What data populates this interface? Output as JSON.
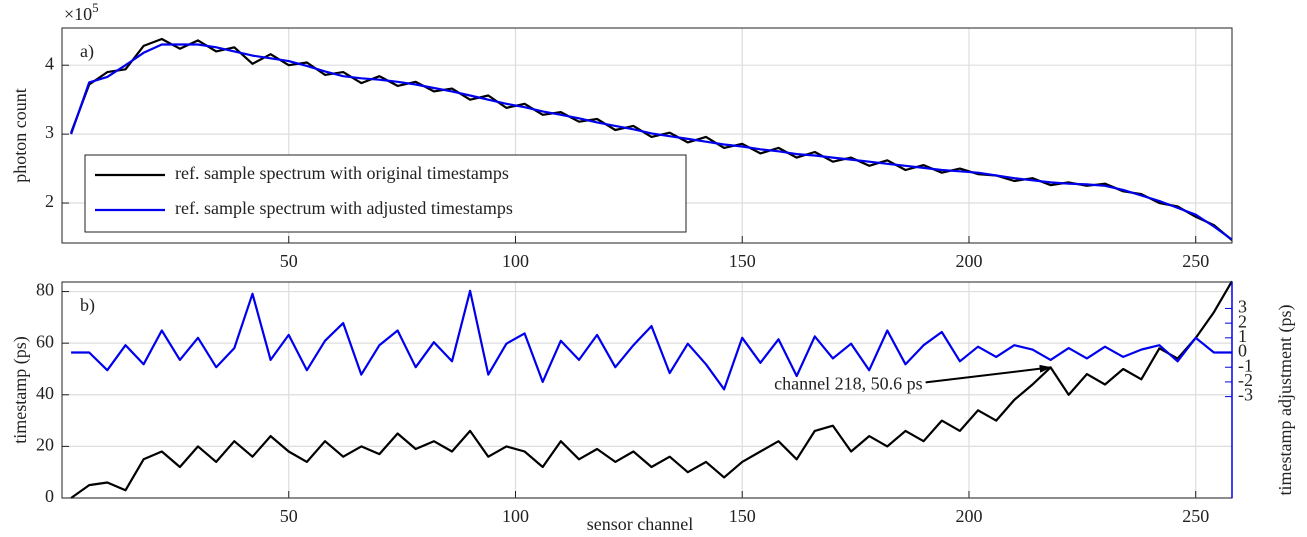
{
  "chart_data": [
    {
      "type": "line",
      "label": "a)",
      "ylabel": "photon count",
      "y_scale_base": "×10",
      "y_scale_exponent": "5",
      "legend": "lower left",
      "grid": true,
      "xlim": [
        0,
        258
      ],
      "xticks": [
        50,
        100,
        150,
        200,
        250
      ],
      "ylim": [
        1.42,
        4.54
      ],
      "yticks": [
        2,
        3,
        4
      ],
      "x": [
        2,
        6,
        10,
        14,
        18,
        22,
        26,
        30,
        34,
        38,
        42,
        46,
        50,
        54,
        58,
        62,
        66,
        70,
        74,
        78,
        82,
        86,
        90,
        94,
        98,
        102,
        106,
        110,
        114,
        118,
        122,
        126,
        130,
        134,
        138,
        142,
        146,
        150,
        154,
        158,
        162,
        166,
        170,
        174,
        178,
        182,
        186,
        190,
        194,
        198,
        202,
        206,
        210,
        214,
        218,
        222,
        226,
        230,
        234,
        238,
        242,
        246,
        250,
        254,
        258
      ],
      "series": [
        {
          "name": "ref. sample spectrum with original timestamps",
          "color": "#000000",
          "values": [
            3.02,
            3.72,
            3.9,
            3.94,
            4.28,
            4.38,
            4.24,
            4.36,
            4.2,
            4.26,
            4.02,
            4.16,
            4.0,
            4.04,
            3.86,
            3.9,
            3.74,
            3.84,
            3.7,
            3.76,
            3.62,
            3.66,
            3.5,
            3.56,
            3.38,
            3.44,
            3.28,
            3.32,
            3.18,
            3.22,
            3.06,
            3.12,
            2.96,
            3.02,
            2.88,
            2.96,
            2.8,
            2.86,
            2.72,
            2.8,
            2.66,
            2.74,
            2.6,
            2.66,
            2.54,
            2.62,
            2.48,
            2.55,
            2.44,
            2.5,
            2.42,
            2.4,
            2.32,
            2.36,
            2.26,
            2.3,
            2.25,
            2.28,
            2.17,
            2.13,
            2.0,
            1.95,
            1.8,
            1.68,
            1.46
          ]
        },
        {
          "name": "ref. sample spectrum with adjusted timestamps",
          "color": "#0000ee",
          "values": [
            3.0,
            3.75,
            3.83,
            4.0,
            4.18,
            4.3,
            4.3,
            4.3,
            4.26,
            4.2,
            4.14,
            4.1,
            4.06,
            3.99,
            3.91,
            3.84,
            3.81,
            3.79,
            3.76,
            3.72,
            3.67,
            3.62,
            3.56,
            3.5,
            3.44,
            3.39,
            3.33,
            3.28,
            3.23,
            3.17,
            3.12,
            3.07,
            3.01,
            2.97,
            2.93,
            2.89,
            2.85,
            2.82,
            2.78,
            2.75,
            2.71,
            2.69,
            2.66,
            2.63,
            2.6,
            2.57,
            2.54,
            2.51,
            2.48,
            2.46,
            2.44,
            2.4,
            2.36,
            2.33,
            2.3,
            2.28,
            2.27,
            2.25,
            2.19,
            2.11,
            2.03,
            1.93,
            1.83,
            1.66,
            1.47
          ]
        }
      ]
    },
    {
      "type": "line",
      "label": "b)",
      "xlabel": "sensor channel",
      "ylabel": "timestamp (ps)",
      "y2label": "timestamp adjustment (ps)",
      "grid": true,
      "xlim": [
        0,
        258
      ],
      "xticks": [
        50,
        100,
        150,
        200,
        250
      ],
      "ylim": [
        0,
        83.7
      ],
      "yticks": [
        0,
        20,
        40,
        60,
        80
      ],
      "y2lim": [
        -9.9,
        4.8
      ],
      "y2ticks": [
        3,
        2,
        1,
        0,
        -1,
        -2,
        -3
      ],
      "annotation": {
        "text": "channel 218, 50.6 ps",
        "x": 218,
        "y": 50.6
      },
      "x": [
        2,
        6,
        10,
        14,
        18,
        22,
        26,
        30,
        34,
        38,
        42,
        46,
        50,
        54,
        58,
        62,
        66,
        70,
        74,
        78,
        82,
        86,
        90,
        94,
        98,
        102,
        106,
        110,
        114,
        118,
        122,
        126,
        130,
        134,
        138,
        142,
        146,
        150,
        154,
        158,
        162,
        166,
        170,
        174,
        178,
        182,
        186,
        190,
        194,
        198,
        202,
        206,
        210,
        214,
        218,
        222,
        226,
        230,
        234,
        238,
        242,
        246,
        250,
        254,
        258
      ],
      "series": [
        {
          "name": "timestamp",
          "color": "#000000",
          "values": [
            0,
            5,
            6,
            3,
            15,
            18,
            12,
            20,
            14,
            22,
            16,
            24,
            18,
            14,
            22,
            16,
            20,
            17,
            25,
            19,
            22,
            18,
            26,
            16,
            20,
            18,
            12,
            22,
            15,
            19,
            14,
            18,
            12,
            16,
            10,
            14,
            8,
            14,
            18,
            22,
            15,
            26,
            28,
            18,
            24,
            20,
            26,
            22,
            30,
            26,
            34,
            30,
            38,
            44,
            50.6,
            40,
            48,
            44,
            50,
            46,
            58,
            54,
            62,
            72,
            84
          ]
        },
        {
          "name": "timestamp adjustment",
          "color": "#0000ee",
          "axis": "y2",
          "values": [
            0,
            0,
            -1.2,
            0.5,
            -0.8,
            1.5,
            -0.5,
            1,
            -1,
            0.3,
            4,
            -0.5,
            1.2,
            -1.2,
            0.8,
            2,
            -1.5,
            0.5,
            1.5,
            -1,
            0.7,
            -0.6,
            4.2,
            -1.5,
            0.6,
            1.3,
            -2,
            0.8,
            -0.5,
            1.2,
            -1,
            0.5,
            1.8,
            -1.4,
            0.6,
            -0.8,
            -2.5,
            1,
            -0.7,
            0.9,
            -1.6,
            1.1,
            -0.4,
            0.6,
            -1.2,
            1.5,
            -0.8,
            0.5,
            1.4,
            -0.6,
            0.4,
            -0.3,
            0.5,
            0.2,
            -0.5,
            0.3,
            -0.4,
            0.4,
            -0.3,
            0.2,
            0.5,
            -0.6,
            1,
            0,
            0
          ]
        }
      ]
    }
  ]
}
